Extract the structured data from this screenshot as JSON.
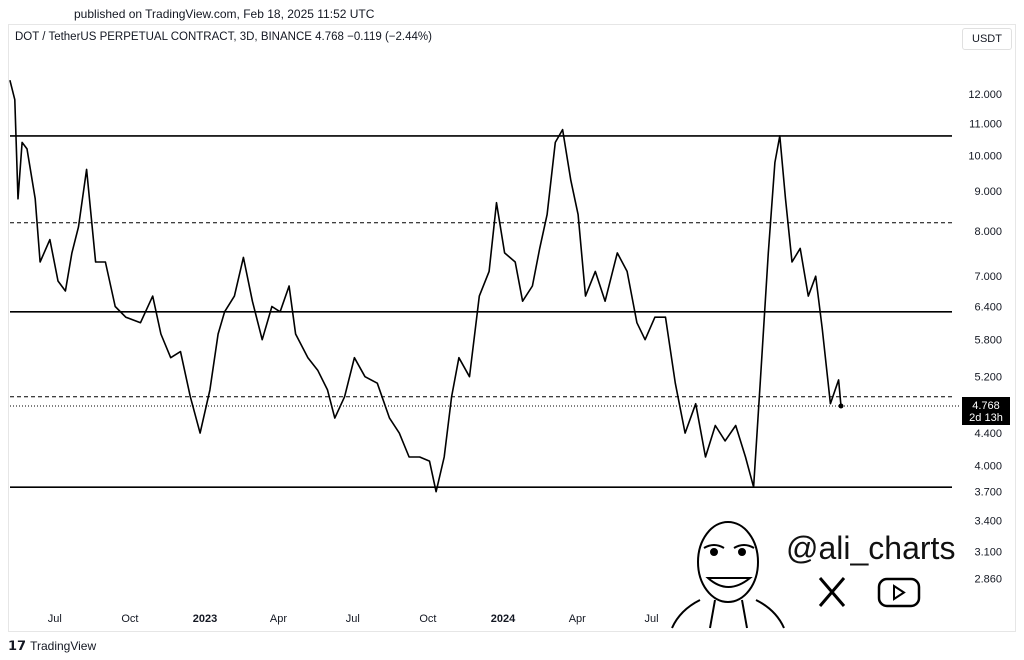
{
  "header": {
    "published": "published on TradingView.com, Feb 18, 2025 11:52 UTC",
    "legend": "DOT / TetherUS PERPETUAL CONTRACT, 3D, BINANCE  4.768  −0.119 (−2.44%)",
    "unit_button": "USDT"
  },
  "footer": {
    "brand": "TradingView"
  },
  "watermark": {
    "handle": "@ali_charts",
    "icons": [
      "x-icon",
      "youtube-icon"
    ]
  },
  "price_label": {
    "price": "4.768",
    "countdown": "2d 13h"
  },
  "chart_data": {
    "type": "line",
    "title": "DOT / TetherUS PERPETUAL CONTRACT, 3D, BINANCE",
    "yscale": "log",
    "ylim": [
      2.7,
      13.5
    ],
    "grid": false,
    "color": "#000000",
    "y_ticks": [
      "12.000",
      "11.000",
      "10.000",
      "9.000",
      "8.000",
      "7.000",
      "6.400",
      "5.800",
      "5.200",
      "4.400",
      "4.000",
      "3.700",
      "3.400",
      "3.100",
      "2.860"
    ],
    "x_ticks": [
      {
        "label": "Jul",
        "date": "2022-07-01"
      },
      {
        "label": "Oct",
        "date": "2022-10-01"
      },
      {
        "label": "2023",
        "date": "2023-01-01",
        "bold": true
      },
      {
        "label": "Apr",
        "date": "2023-04-01"
      },
      {
        "label": "Jul",
        "date": "2023-07-01"
      },
      {
        "label": "Oct",
        "date": "2023-10-01"
      },
      {
        "label": "2024",
        "date": "2024-01-01",
        "bold": true
      },
      {
        "label": "Apr",
        "date": "2024-04-01"
      },
      {
        "label": "Jul",
        "date": "2024-07-01"
      }
    ],
    "levels": [
      {
        "price": 10.6,
        "style": "solid"
      },
      {
        "price": 8.2,
        "style": "dashed"
      },
      {
        "price": 6.3,
        "style": "solid"
      },
      {
        "price": 4.9,
        "style": "dashed"
      },
      {
        "price": 3.75,
        "style": "solid"
      },
      {
        "price": 4.768,
        "style": "dotted"
      }
    ],
    "series": [
      {
        "points": [
          [
            "2022-05-07",
            12.5
          ],
          [
            "2022-05-13",
            11.8
          ],
          [
            "2022-05-17",
            8.8
          ],
          [
            "2022-05-22",
            10.4
          ],
          [
            "2022-05-28",
            10.2
          ],
          [
            "2022-06-07",
            8.8
          ],
          [
            "2022-06-13",
            7.3
          ],
          [
            "2022-06-25",
            7.8
          ],
          [
            "2022-07-05",
            6.9
          ],
          [
            "2022-07-14",
            6.7
          ],
          [
            "2022-07-22",
            7.5
          ],
          [
            "2022-07-30",
            8.1
          ],
          [
            "2022-08-09",
            9.6
          ],
          [
            "2022-08-20",
            7.3
          ],
          [
            "2022-09-01",
            7.3
          ],
          [
            "2022-09-13",
            6.4
          ],
          [
            "2022-09-26",
            6.2
          ],
          [
            "2022-10-14",
            6.1
          ],
          [
            "2022-10-29",
            6.6
          ],
          [
            "2022-11-08",
            5.9
          ],
          [
            "2022-11-20",
            5.5
          ],
          [
            "2022-12-02",
            5.6
          ],
          [
            "2022-12-14",
            4.9
          ],
          [
            "2022-12-26",
            4.4
          ],
          [
            "2023-01-07",
            5.0
          ],
          [
            "2023-01-17",
            5.9
          ],
          [
            "2023-01-25",
            6.3
          ],
          [
            "2023-02-06",
            6.6
          ],
          [
            "2023-02-17",
            7.4
          ],
          [
            "2023-02-28",
            6.5
          ],
          [
            "2023-03-12",
            5.8
          ],
          [
            "2023-03-24",
            6.4
          ],
          [
            "2023-04-03",
            6.3
          ],
          [
            "2023-04-14",
            6.8
          ],
          [
            "2023-04-22",
            5.9
          ],
          [
            "2023-05-07",
            5.5
          ],
          [
            "2023-05-19",
            5.3
          ],
          [
            "2023-05-31",
            5.0
          ],
          [
            "2023-06-09",
            4.6
          ],
          [
            "2023-06-21",
            4.9
          ],
          [
            "2023-07-03",
            5.5
          ],
          [
            "2023-07-16",
            5.2
          ],
          [
            "2023-07-31",
            5.1
          ],
          [
            "2023-08-15",
            4.6
          ],
          [
            "2023-08-27",
            4.4
          ],
          [
            "2023-09-08",
            4.1
          ],
          [
            "2023-09-21",
            4.1
          ],
          [
            "2023-10-03",
            4.05
          ],
          [
            "2023-10-11",
            3.7
          ],
          [
            "2023-10-21",
            4.1
          ],
          [
            "2023-10-30",
            4.9
          ],
          [
            "2023-11-08",
            5.5
          ],
          [
            "2023-11-21",
            5.2
          ],
          [
            "2023-12-03",
            6.6
          ],
          [
            "2023-12-15",
            7.1
          ],
          [
            "2023-12-24",
            8.7
          ],
          [
            "2024-01-03",
            7.5
          ],
          [
            "2024-01-16",
            7.3
          ],
          [
            "2024-01-25",
            6.5
          ],
          [
            "2024-02-06",
            6.8
          ],
          [
            "2024-02-15",
            7.6
          ],
          [
            "2024-02-24",
            8.4
          ],
          [
            "2024-03-05",
            10.4
          ],
          [
            "2024-03-14",
            10.8
          ],
          [
            "2024-03-24",
            9.3
          ],
          [
            "2024-04-02",
            8.4
          ],
          [
            "2024-04-11",
            6.6
          ],
          [
            "2024-04-23",
            7.1
          ],
          [
            "2024-05-05",
            6.5
          ],
          [
            "2024-05-20",
            7.5
          ],
          [
            "2024-06-01",
            7.1
          ],
          [
            "2024-06-13",
            6.1
          ],
          [
            "2024-06-23",
            5.8
          ],
          [
            "2024-07-05",
            6.2
          ],
          [
            "2024-07-18",
            6.2
          ],
          [
            "2024-07-30",
            5.1
          ],
          [
            "2024-08-11",
            4.4
          ],
          [
            "2024-08-24",
            4.8
          ],
          [
            "2024-09-05",
            4.1
          ],
          [
            "2024-09-17",
            4.5
          ],
          [
            "2024-09-29",
            4.3
          ],
          [
            "2024-10-12",
            4.5
          ],
          [
            "2024-10-24",
            4.1
          ],
          [
            "2024-11-03",
            3.75
          ],
          [
            "2024-11-11",
            5.1
          ],
          [
            "2024-11-21",
            7.5
          ],
          [
            "2024-11-29",
            9.8
          ],
          [
            "2024-12-05",
            10.6
          ],
          [
            "2024-12-12",
            8.8
          ],
          [
            "2024-12-20",
            7.3
          ],
          [
            "2024-12-30",
            7.6
          ],
          [
            "2025-01-09",
            6.6
          ],
          [
            "2025-01-18",
            7.0
          ],
          [
            "2025-01-26",
            6.0
          ],
          [
            "2025-02-05",
            4.8
          ],
          [
            "2025-02-15",
            5.15
          ],
          [
            "2025-02-18",
            4.768
          ]
        ]
      }
    ]
  }
}
